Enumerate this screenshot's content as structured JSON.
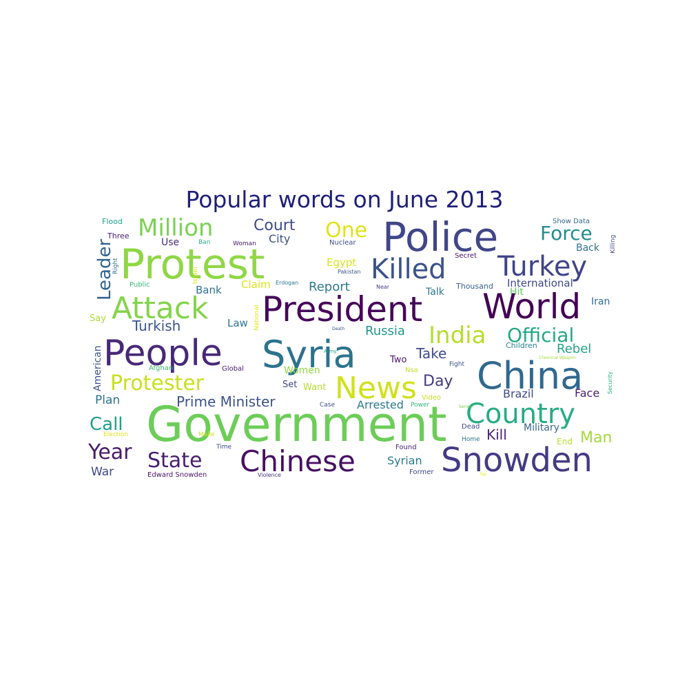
{
  "title": "Popular words on June 2013",
  "words": [
    {
      "text": "Government",
      "color": "#6ccd59"
    },
    {
      "text": "Protest",
      "color": "#8fd744"
    },
    {
      "text": "Police",
      "color": "#404688"
    },
    {
      "text": "President",
      "color": "#46075a"
    },
    {
      "text": "World",
      "color": "#440154"
    },
    {
      "text": "Syria",
      "color": "#2c728e"
    },
    {
      "text": "China",
      "color": "#31688e"
    },
    {
      "text": "People",
      "color": "#482878"
    },
    {
      "text": "Snowden",
      "color": "#443a83"
    },
    {
      "text": "Chinese",
      "color": "#471063"
    },
    {
      "text": "News",
      "color": "#d0e11c"
    },
    {
      "text": "Attack",
      "color": "#84d44b"
    },
    {
      "text": "Killed",
      "color": "#3b528b"
    },
    {
      "text": "Turkey",
      "color": "#414487"
    },
    {
      "text": "Country",
      "color": "#27ad81"
    },
    {
      "text": "Million",
      "color": "#7ad151"
    },
    {
      "text": "Protester",
      "color": "#c8e020"
    },
    {
      "text": "State",
      "color": "#481f70"
    },
    {
      "text": "Year",
      "color": "#481a6c"
    },
    {
      "text": "India",
      "color": "#b5de2b"
    },
    {
      "text": "Official",
      "color": "#22a884"
    },
    {
      "text": "Force",
      "color": "#228c8d"
    },
    {
      "text": "One",
      "color": "#e0e318"
    },
    {
      "text": "Leader",
      "color": "#33638d"
    },
    {
      "text": "Court",
      "color": "#3e4a89"
    },
    {
      "text": "Prime Minister",
      "color": "#3b528b"
    },
    {
      "text": "Call",
      "color": "#1f9e89"
    },
    {
      "text": "Day",
      "color": "#453882"
    },
    {
      "text": "Take",
      "color": "#3e4989"
    },
    {
      "text": "Turkish",
      "color": "#3b528b"
    },
    {
      "text": "Man",
      "color": "#a2da37"
    },
    {
      "text": "Kill",
      "color": "#482475"
    },
    {
      "text": "Rebel",
      "color": "#20a486"
    },
    {
      "text": "Report",
      "color": "#2a788e"
    },
    {
      "text": "Russia",
      "color": "#1f958b"
    },
    {
      "text": "Brazil",
      "color": "#3e4989"
    },
    {
      "text": "Face",
      "color": "#481d6f"
    },
    {
      "text": "International",
      "color": "#3f4788"
    },
    {
      "text": "Plan",
      "color": "#2d708e"
    },
    {
      "text": "War",
      "color": "#3f4788"
    },
    {
      "text": "Syrian",
      "color": "#2a788e"
    },
    {
      "text": "Arrested",
      "color": "#29798e"
    },
    {
      "text": "Military",
      "color": "#33638d"
    },
    {
      "text": "City",
      "color": "#3c4f8a"
    },
    {
      "text": "Bank",
      "color": "#2e6f8e"
    },
    {
      "text": "Claim",
      "color": "#dde318"
    },
    {
      "text": "Talk",
      "color": "#2b748e"
    },
    {
      "text": "Women",
      "color": "#93d741"
    },
    {
      "text": "Law",
      "color": "#2b748e"
    },
    {
      "text": "Back",
      "color": "#2e6f8e"
    },
    {
      "text": "Iran",
      "color": "#2f6c8e"
    },
    {
      "text": "Egypt",
      "color": "#dae319"
    },
    {
      "text": "Use",
      "color": "#482979"
    },
    {
      "text": "American",
      "color": "#3b528b"
    },
    {
      "text": "Two",
      "color": "#471365"
    },
    {
      "text": "Set",
      "color": "#414487"
    },
    {
      "text": "Want",
      "color": "#b2dd2d"
    },
    {
      "text": "Hit",
      "color": "#5ec962"
    },
    {
      "text": "End",
      "color": "#b8de29"
    },
    {
      "text": "Say",
      "color": "#a8db34"
    },
    {
      "text": "Thousand",
      "color": "#355f8d"
    },
    {
      "text": "Children",
      "color": "#26828e"
    },
    {
      "text": "Flood",
      "color": "#1fa188"
    },
    {
      "text": "Three",
      "color": "#481b6d"
    },
    {
      "text": "Right",
      "color": "#2c718e"
    },
    {
      "text": "Public",
      "color": "#38b977"
    },
    {
      "text": "Israel",
      "color": "#d8e219"
    },
    {
      "text": "Ban",
      "color": "#29af7f"
    },
    {
      "text": "Woman",
      "color": "#482173"
    },
    {
      "text": "Nuclear",
      "color": "#3d4d8a"
    },
    {
      "text": "Pakistan",
      "color": "#3b528b"
    },
    {
      "text": "Secret",
      "color": "#471164"
    },
    {
      "text": "Erdogan",
      "color": "#2a768e"
    },
    {
      "text": "Near",
      "color": "#433e85"
    },
    {
      "text": "National",
      "color": "#e5e419"
    },
    {
      "text": "Death",
      "color": "#3b518b"
    },
    {
      "text": "Show Data",
      "color": "#2f6b8e"
    },
    {
      "text": "Killing",
      "color": "#3d4e8a"
    },
    {
      "text": "Army",
      "color": "#1fa187"
    },
    {
      "text": "Global",
      "color": "#471669"
    },
    {
      "text": "Fight",
      "color": "#3a538b"
    },
    {
      "text": "Chemical Weapon",
      "color": "#a5db36"
    },
    {
      "text": "Security",
      "color": "#26ad81"
    },
    {
      "text": "Afghan",
      "color": "#3dbc74"
    },
    {
      "text": "Nsa",
      "color": "#c0df25"
    },
    {
      "text": "Case",
      "color": "#3c4f8a"
    },
    {
      "text": "Power",
      "color": "#34b679"
    },
    {
      "text": "Video",
      "color": "#c5e021"
    },
    {
      "text": "Dead",
      "color": "#414387"
    },
    {
      "text": "Home",
      "color": "#2c738e"
    },
    {
      "text": "Found",
      "color": "#482576"
    },
    {
      "text": "Former",
      "color": "#3e4989"
    },
    {
      "text": "Election",
      "color": "#dfe318"
    },
    {
      "text": "Make",
      "color": "#d2e21b"
    },
    {
      "text": "Time",
      "color": "#3f4889"
    },
    {
      "text": "Edward Snowden",
      "color": "#471365"
    },
    {
      "text": "Violence",
      "color": "#46337e"
    },
    {
      "text": "Series",
      "color": "#6ece58"
    },
    {
      "text": "Top",
      "color": "#e7e419"
    }
  ]
}
